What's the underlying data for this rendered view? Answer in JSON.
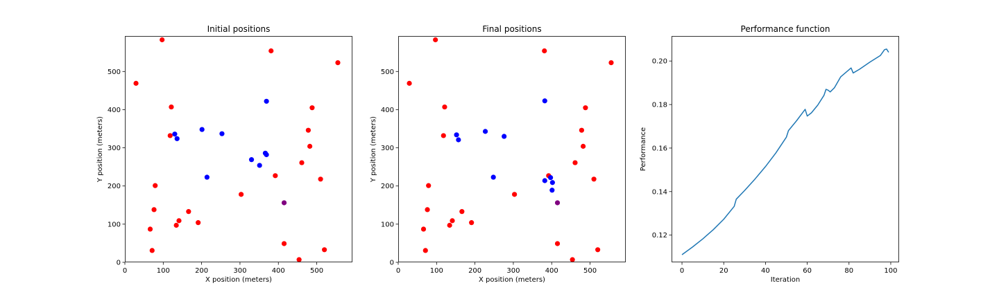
{
  "chart_data": [
    {
      "type": "scatter",
      "title": "Initial positions",
      "xlabel": "X position (meters)",
      "ylabel": "Y position (meters)",
      "xlim": [
        0,
        593
      ],
      "ylim": [
        0,
        593
      ],
      "xticks": [
        0,
        100,
        200,
        300,
        400,
        500
      ],
      "yticks": [
        0,
        100,
        200,
        300,
        400,
        500
      ],
      "series": [
        {
          "color": "#ff0000",
          "points": [
            [
              97,
              583
            ],
            [
              29,
              469
            ],
            [
              381,
              554
            ],
            [
              555,
              523
            ],
            [
              121,
              407
            ],
            [
              488,
              405
            ],
            [
              118,
              332
            ],
            [
              478,
              346
            ],
            [
              482,
              304
            ],
            [
              461,
              261
            ],
            [
              392,
              227
            ],
            [
              79,
              201
            ],
            [
              510,
              218
            ],
            [
              303,
              178
            ],
            [
              76,
              138
            ],
            [
              166,
              133
            ],
            [
              141,
              109
            ],
            [
              191,
              104
            ],
            [
              66,
              87
            ],
            [
              134,
              97
            ],
            [
              71,
              31
            ],
            [
              415,
              49
            ],
            [
              520,
              33
            ],
            [
              454,
              7
            ]
          ]
        },
        {
          "color": "#0000ff",
          "points": [
            [
              369,
              422
            ],
            [
              201,
              348
            ],
            [
              253,
              337
            ],
            [
              130,
              336
            ],
            [
              136,
              324
            ],
            [
              366,
              286
            ],
            [
              369,
              282
            ],
            [
              330,
              269
            ],
            [
              351,
              254
            ],
            [
              214,
              223
            ]
          ]
        },
        {
          "color": "#800080",
          "points": [
            [
              415,
              156
            ]
          ]
        }
      ]
    },
    {
      "type": "scatter",
      "title": "Final positions",
      "xlabel": "X position (meters)",
      "ylabel": "Y position (meters)",
      "xlim": [
        0,
        593
      ],
      "ylim": [
        0,
        593
      ],
      "xticks": [
        0,
        100,
        200,
        300,
        400,
        500
      ],
      "yticks": [
        0,
        100,
        200,
        300,
        400,
        500
      ],
      "series": [
        {
          "color": "#ff0000",
          "points": [
            [
              97,
              583
            ],
            [
              29,
              469
            ],
            [
              381,
              554
            ],
            [
              555,
              523
            ],
            [
              121,
              407
            ],
            [
              488,
              405
            ],
            [
              118,
              332
            ],
            [
              478,
              346
            ],
            [
              482,
              304
            ],
            [
              461,
              261
            ],
            [
              392,
              227
            ],
            [
              79,
              201
            ],
            [
              510,
              218
            ],
            [
              303,
              178
            ],
            [
              76,
              138
            ],
            [
              166,
              133
            ],
            [
              141,
              109
            ],
            [
              191,
              104
            ],
            [
              66,
              87
            ],
            [
              134,
              97
            ],
            [
              71,
              31
            ],
            [
              415,
              49
            ],
            [
              520,
              33
            ],
            [
              454,
              7
            ]
          ]
        },
        {
          "color": "#0000ff",
          "points": [
            [
              382,
              423
            ],
            [
              227,
              343
            ],
            [
              152,
              334
            ],
            [
              157,
              321
            ],
            [
              276,
              330
            ],
            [
              397,
              222
            ],
            [
              382,
              214
            ],
            [
              402,
              209
            ],
            [
              401,
              189
            ],
            [
              248,
              223
            ]
          ]
        },
        {
          "color": "#800080",
          "points": [
            [
              415,
              156
            ]
          ]
        }
      ]
    },
    {
      "type": "line",
      "title": "Performance function",
      "xlabel": "Iteration",
      "ylabel": "Performance",
      "xlim": [
        -5,
        104
      ],
      "ylim": [
        0.1075,
        0.2115
      ],
      "xticks": [
        0,
        20,
        40,
        60,
        80,
        100
      ],
      "yticks": [
        0.12,
        0.14,
        0.16,
        0.18,
        0.2
      ],
      "ytick_labels": [
        "0.12",
        "0.14",
        "0.16",
        "0.18",
        "0.20"
      ],
      "series": [
        {
          "color": "#1f77b4",
          "x": [
            0,
            5,
            10,
            15,
            20,
            25,
            26,
            30,
            35,
            40,
            45,
            50,
            51,
            55,
            59,
            60,
            62,
            65,
            68,
            69,
            70,
            71,
            73,
            76,
            81,
            82,
            85,
            90,
            95,
            97,
            98,
            99
          ],
          "y": [
            0.111,
            0.1145,
            0.1183,
            0.1225,
            0.1273,
            0.1332,
            0.1365,
            0.1405,
            0.1458,
            0.1515,
            0.1578,
            0.165,
            0.168,
            0.1727,
            0.1778,
            0.1747,
            0.1762,
            0.1797,
            0.1842,
            0.187,
            0.1866,
            0.1858,
            0.1877,
            0.1927,
            0.1968,
            0.1945,
            0.1962,
            0.1995,
            0.2025,
            0.2052,
            0.2055,
            0.204
          ]
        }
      ]
    }
  ]
}
